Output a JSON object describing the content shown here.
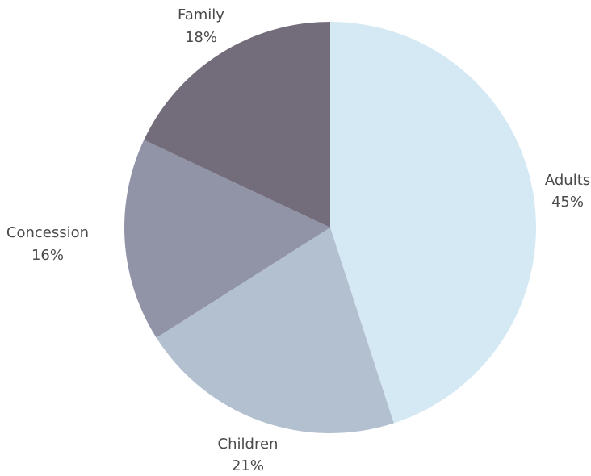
{
  "chart_data": {
    "type": "pie",
    "title": "",
    "slices": [
      {
        "label": "Adults",
        "percent_label": "45%",
        "value": 45,
        "color": "#d5e9f4"
      },
      {
        "label": "Children",
        "percent_label": "21%",
        "value": 21,
        "color": "#b3c0cf"
      },
      {
        "label": "Concession",
        "percent_label": "16%",
        "value": 16,
        "color": "#9194a7"
      },
      {
        "label": "Family",
        "percent_label": "18%",
        "value": 18,
        "color": "#736c7b"
      }
    ],
    "start": "12 o'clock",
    "direction": "clockwise",
    "legend": "none"
  }
}
